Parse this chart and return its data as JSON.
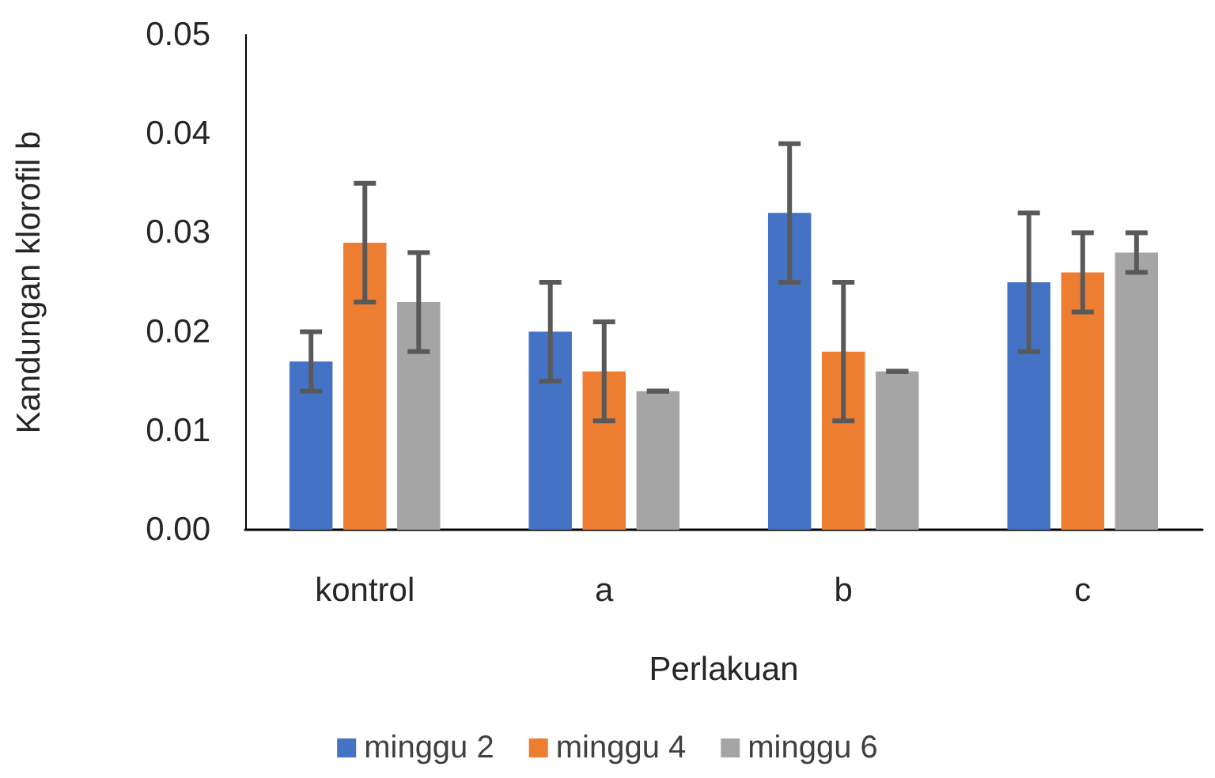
{
  "chart_data": {
    "type": "bar",
    "xlabel": "Perlakuan",
    "ylabel": "Kandungan klorofil b",
    "categories": [
      "kontrol",
      "a",
      "b",
      "c"
    ],
    "series": [
      {
        "name": "minggu 2",
        "color": "#4472c4",
        "values": [
          0.017,
          0.02,
          0.032,
          0.025
        ],
        "errors": [
          0.003,
          0.005,
          0.007,
          0.007
        ]
      },
      {
        "name": "minggu 4",
        "color": "#ed7d31",
        "values": [
          0.029,
          0.016,
          0.018,
          0.026
        ],
        "errors": [
          0.006,
          0.005,
          0.007,
          0.004
        ]
      },
      {
        "name": "minggu 6",
        "color": "#a5a5a5",
        "values": [
          0.023,
          0.014,
          0.016,
          0.028
        ],
        "errors": [
          0.005,
          0,
          0,
          0.002
        ]
      }
    ],
    "ylim": [
      0,
      0.05
    ],
    "yticks": [
      {
        "value": 0,
        "label": "0.00"
      },
      {
        "value": 0.01,
        "label": "0.01"
      },
      {
        "value": 0.02,
        "label": "0.02"
      },
      {
        "value": 0.03,
        "label": "0.03"
      },
      {
        "value": 0.04,
        "label": "0.04"
      },
      {
        "value": 0.05,
        "label": "0.05"
      }
    ],
    "grid": false,
    "legend": "bottom"
  }
}
